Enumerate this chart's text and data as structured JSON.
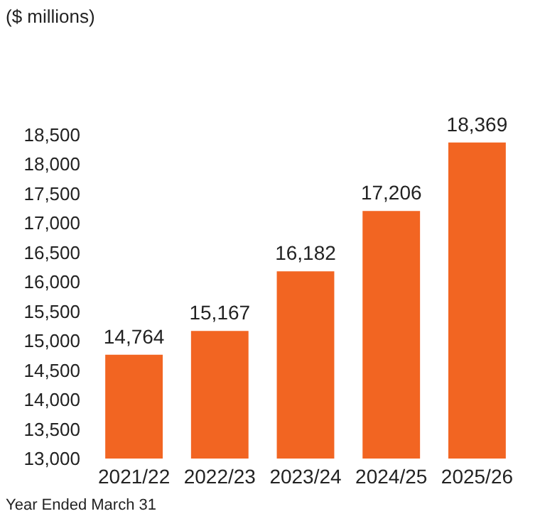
{
  "chart_data": {
    "type": "bar",
    "annotations": [
      "($ millions)",
      "Year Ended March 31"
    ],
    "categories": [
      "2021/22",
      "2022/23",
      "2023/24",
      "2024/25",
      "2025/26"
    ],
    "values": [
      14764,
      15167,
      16182,
      17206,
      18369
    ],
    "color": "#f26522",
    "value_labels": [
      "14,764",
      "15,167",
      "16,182",
      "17,206",
      "18,369"
    ],
    "ylim": [
      13000,
      18500
    ],
    "yticks": [
      {
        "value": 13000,
        "label": "13,000"
      },
      {
        "value": 13500,
        "label": "13,500"
      },
      {
        "value": 14000,
        "label": "14,000"
      },
      {
        "value": 14500,
        "label": "14,500"
      },
      {
        "value": 15000,
        "label": "15,000"
      },
      {
        "value": 15500,
        "label": "15,500"
      },
      {
        "value": 16000,
        "label": "16,000"
      },
      {
        "value": 16500,
        "label": "16,500"
      },
      {
        "value": 17000,
        "label": "17,000"
      },
      {
        "value": 17500,
        "label": "17,500"
      },
      {
        "value": 18000,
        "label": "18,000"
      },
      {
        "value": 18500,
        "label": "18,500"
      }
    ],
    "grid": false
  }
}
